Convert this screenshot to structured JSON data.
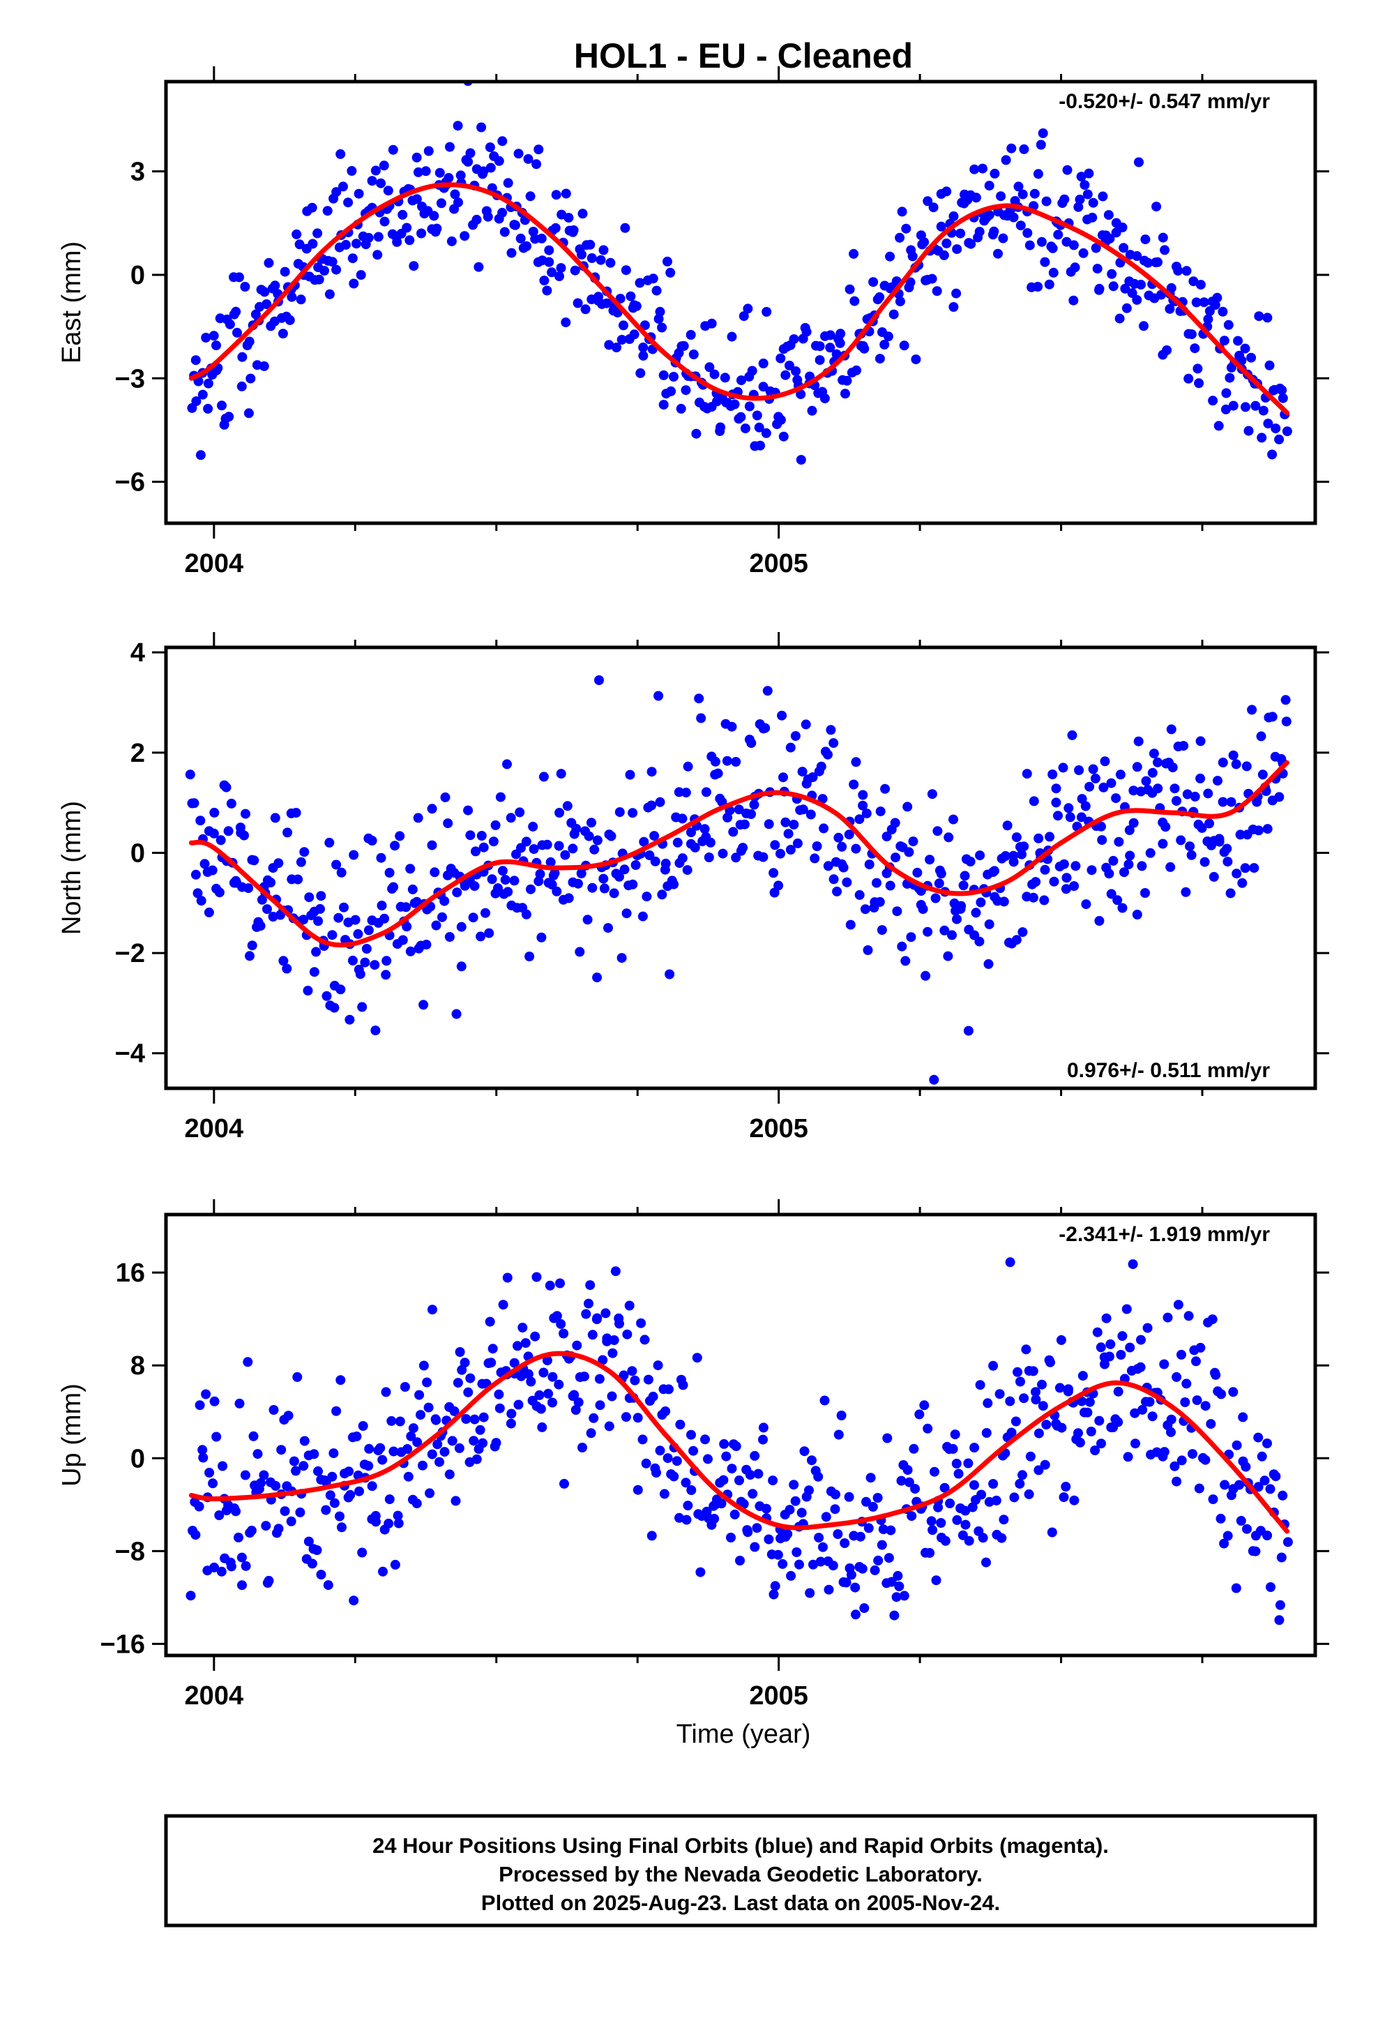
{
  "title": "HOL1  - EU - Cleaned",
  "xlabel": "Time (year)",
  "colors": {
    "points": "#0000ff",
    "fit": "#ff0000",
    "frame": "#000000"
  },
  "footer": {
    "line1": "24 Hour Positions Using Final Orbits (blue) and Rapid Orbits (magenta).",
    "line2": "Processed by the Nevada Geodetic Laboratory.",
    "line3": "Plotted on 2025-Aug-23. Last data on 2005-Nov-24."
  },
  "chart_data": [
    {
      "type": "scatter",
      "ylabel": "East (mm)",
      "rate": "-0.520+/- 0.547 mm/yr",
      "rate_position": "top-right",
      "xlim": [
        2003.915,
        2005.95
      ],
      "ylim": [
        -7.2,
        5.6
      ],
      "x_major_ticks": [
        2004,
        2005
      ],
      "x_minor_ticks": [
        2004.25,
        2004.5,
        2004.75,
        2005.25,
        2005.5,
        2005.75
      ],
      "y_ticks": [
        -6,
        -3,
        0,
        3
      ],
      "data_start": 2003.96,
      "data_end": 2005.9,
      "fit": {
        "name": "model",
        "x": [
          2003.96,
          2004.0,
          2004.1,
          2004.2,
          2004.3,
          2004.4,
          2004.5,
          2004.6,
          2004.7,
          2004.8,
          2004.9,
          2005.0,
          2005.1,
          2005.2,
          2005.3,
          2005.4,
          2005.5,
          2005.6,
          2005.7,
          2005.8,
          2005.9
        ],
        "y": [
          -3.0,
          -2.6,
          -1.0,
          0.8,
          2.0,
          2.6,
          2.3,
          1.1,
          -0.6,
          -2.3,
          -3.4,
          -3.5,
          -2.6,
          -0.6,
          1.3,
          2.0,
          1.5,
          0.6,
          -0.7,
          -2.4,
          -4.0
        ]
      },
      "scatter_sd": 0.95
    },
    {
      "type": "scatter",
      "ylabel": "North (mm)",
      "rate": "0.976+/- 0.511 mm/yr",
      "rate_position": "bottom-right",
      "xlim": [
        2003.915,
        2005.95
      ],
      "ylim": [
        -4.7,
        4.1
      ],
      "x_major_ticks": [
        2004,
        2005
      ],
      "x_minor_ticks": [
        2004.25,
        2004.5,
        2004.75,
        2005.25,
        2005.5,
        2005.75
      ],
      "y_ticks": [
        -4,
        -2,
        0,
        2,
        4
      ],
      "data_start": 2003.96,
      "data_end": 2005.9,
      "fit": {
        "name": "model",
        "x": [
          2003.96,
          2004.0,
          2004.1,
          2004.2,
          2004.3,
          2004.4,
          2004.5,
          2004.6,
          2004.7,
          2004.8,
          2004.9,
          2005.0,
          2005.1,
          2005.2,
          2005.3,
          2005.4,
          2005.5,
          2005.6,
          2005.7,
          2005.8,
          2005.9
        ],
        "y": [
          0.2,
          0.1,
          -0.9,
          -1.8,
          -1.6,
          -0.8,
          -0.2,
          -0.3,
          -0.2,
          0.3,
          0.9,
          1.2,
          0.8,
          -0.3,
          -0.8,
          -0.6,
          0.2,
          0.8,
          0.8,
          0.8,
          1.8
        ]
      },
      "scatter_sd": 0.9
    },
    {
      "type": "scatter",
      "ylabel": "Up (mm)",
      "rate": "-2.341+/- 1.919 mm/yr",
      "rate_position": "top-right",
      "xlim": [
        2003.915,
        2005.95
      ],
      "ylim": [
        -17,
        21
      ],
      "x_major_ticks": [
        2004,
        2005
      ],
      "x_minor_ticks": [
        2004.25,
        2004.5,
        2004.75,
        2005.25,
        2005.5,
        2005.75
      ],
      "y_ticks": [
        -16,
        -8,
        0,
        8,
        16
      ],
      "data_start": 2003.96,
      "data_end": 2005.9,
      "fit": {
        "name": "model",
        "x": [
          2003.96,
          2004.0,
          2004.1,
          2004.2,
          2004.3,
          2004.4,
          2004.5,
          2004.6,
          2004.7,
          2004.8,
          2004.9,
          2005.0,
          2005.1,
          2005.2,
          2005.3,
          2005.4,
          2005.5,
          2005.6,
          2005.7,
          2005.8,
          2005.9
        ],
        "y": [
          -3.2,
          -3.5,
          -3.2,
          -2.5,
          -1.2,
          2.2,
          6.5,
          9.0,
          7.5,
          2.0,
          -3.2,
          -5.8,
          -5.7,
          -4.8,
          -3.0,
          1.0,
          4.5,
          6.5,
          4.3,
          -0.5,
          -6.3
        ]
      },
      "scatter_sd": 4.0
    }
  ]
}
